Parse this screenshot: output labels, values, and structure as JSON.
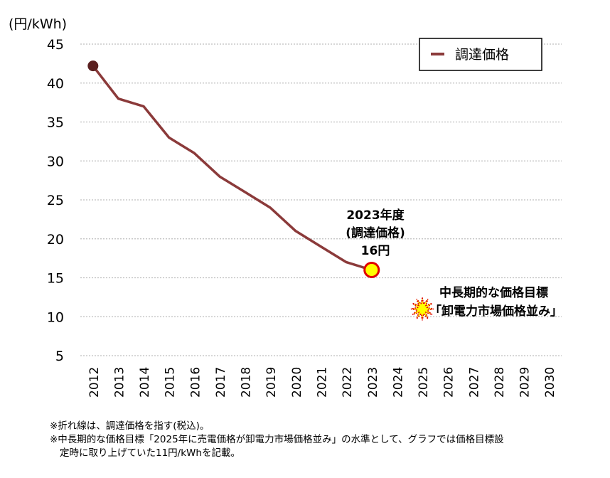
{
  "chart_data": {
    "type": "line",
    "unit_label": "(円/kWh)",
    "x": [
      "2012",
      "2013",
      "2014",
      "2015",
      "2016",
      "2017",
      "2018",
      "2019",
      "2020",
      "2021",
      "2022",
      "2023",
      "2024",
      "2025",
      "2026",
      "2027",
      "2028",
      "2029",
      "2030"
    ],
    "series": [
      {
        "name": "調達価格",
        "color": "#8b3a3a",
        "points": [
          {
            "x": "2012",
            "y": 42.2
          },
          {
            "x": "2013",
            "y": 38
          },
          {
            "x": "2014",
            "y": 37
          },
          {
            "x": "2015",
            "y": 33
          },
          {
            "x": "2016",
            "y": 31
          },
          {
            "x": "2017",
            "y": 28
          },
          {
            "x": "2018",
            "y": 26
          },
          {
            "x": "2019",
            "y": 24
          },
          {
            "x": "2020",
            "y": 21
          },
          {
            "x": "2021",
            "y": 19
          },
          {
            "x": "2022",
            "y": 17
          },
          {
            "x": "2023",
            "y": 16
          }
        ]
      }
    ],
    "target_point": {
      "x": "2025",
      "y": 11
    },
    "yticks": [
      5,
      10,
      15,
      20,
      25,
      30,
      35,
      40,
      45
    ],
    "ylim": [
      5,
      45
    ],
    "grid": true,
    "legend_position": "top-right",
    "annotations": {
      "end_line1": "2023年度",
      "end_line2": "(調達価格)",
      "end_line3": "16円",
      "target_line1": "中長期的な価格目標",
      "target_line2": "「卸電力市場価格並み」"
    }
  },
  "notes": {
    "line1": "※折れ線は、調達価格を指す(税込)。",
    "line2": "※中長期的な価格目標「2025年に売電価格が卸電力市場価格並み」の水準として、グラフでは価格目標設",
    "line3": "定時に取り上げていた11円/kWhを記載。"
  }
}
